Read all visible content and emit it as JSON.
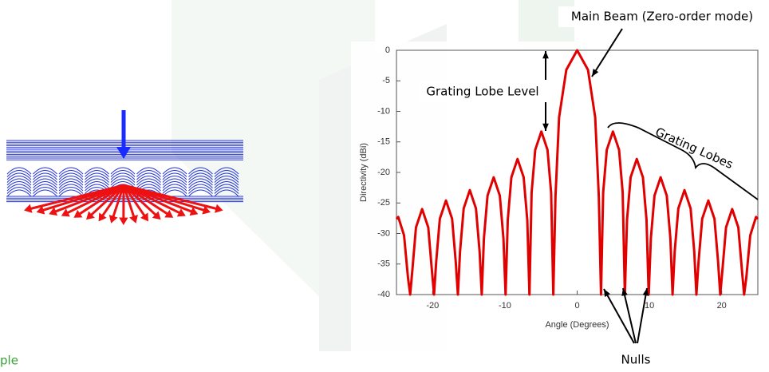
{
  "chart_data": {
    "type": "line",
    "x_label": "Angle (Degrees)",
    "y_label": "Directivity (dBi)",
    "xlim": [
      -25,
      25
    ],
    "ylim": [
      -40,
      0
    ],
    "xticks": [
      -20,
      -10,
      0,
      10,
      20
    ],
    "yticks": [
      0,
      -5,
      -10,
      -15,
      -20,
      -25,
      -30,
      -35,
      -40
    ],
    "grid": false,
    "series": [
      {
        "color": "#e10000",
        "x": [
          -25,
          -24.75,
          -23.95,
          -23.4,
          -23.1,
          -22.8,
          -22.3,
          -21.45,
          -20.6,
          -20.1,
          -19.8,
          -19.5,
          -19.0,
          -18.15,
          -17.3,
          -16.8,
          -16.5,
          -16.2,
          -15.7,
          -14.85,
          -14.0,
          -13.5,
          -13.2,
          -12.9,
          -12.4,
          -11.55,
          -10.7,
          -10.2,
          -9.9,
          -9.6,
          -9.1,
          -8.25,
          -7.4,
          -6.9,
          -6.6,
          -6.3,
          -5.8,
          -4.95,
          -4.1,
          -3.6,
          -3.3,
          -3.0,
          -2.5,
          -1.5,
          0,
          1.5,
          2.5,
          3.0,
          3.3,
          3.6,
          4.1,
          4.95,
          5.8,
          6.3,
          6.6,
          6.9,
          7.4,
          8.25,
          9.1,
          9.6,
          9.9,
          10.2,
          10.7,
          11.55,
          12.4,
          12.9,
          13.2,
          13.5,
          14.0,
          14.85,
          15.7,
          16.2,
          16.5,
          16.8,
          17.3,
          18.15,
          19.0,
          19.5,
          19.8,
          20.1,
          20.6,
          21.45,
          22.3,
          22.8,
          23.1,
          23.4,
          23.95,
          24.75,
          25
        ],
        "values": [
          -27.6,
          -27.3,
          -30.3,
          -37.3,
          -40,
          -36,
          -29,
          -26,
          -29,
          -36,
          -40,
          -34.6,
          -27.6,
          -24.6,
          -27.6,
          -34.6,
          -40,
          -32.9,
          -25.9,
          -22.9,
          -25.9,
          -32.9,
          -40,
          -30.8,
          -23.8,
          -20.8,
          -23.8,
          -30.8,
          -40,
          -27.8,
          -20.8,
          -17.8,
          -20.8,
          -27.8,
          -40,
          -23.3,
          -16.3,
          -13.3,
          -16.3,
          -23.3,
          -40,
          -24,
          -11,
          -3.2,
          0,
          -3.2,
          -11,
          -24,
          -40,
          -23.3,
          -16.3,
          -13.3,
          -16.3,
          -23.3,
          -40,
          -27.8,
          -20.8,
          -17.8,
          -20.8,
          -27.8,
          -40,
          -30.8,
          -23.8,
          -20.8,
          -23.8,
          -30.8,
          -40,
          -32.9,
          -25.9,
          -22.9,
          -25.9,
          -32.9,
          -40,
          -34.6,
          -27.6,
          -24.6,
          -27.6,
          -34.6,
          -40,
          -36,
          -29,
          -26,
          -29,
          -36,
          -40,
          -37.3,
          -30.3,
          -27.3,
          -27.6
        ]
      }
    ],
    "annotations": [
      "Main Beam (Zero-order mode)",
      "Grating Lobe Level",
      "Grating Lobes",
      "Nulls",
      "ple"
    ]
  }
}
